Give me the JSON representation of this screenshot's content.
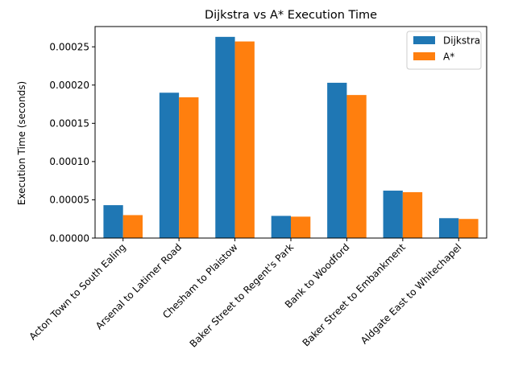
{
  "chart_data": {
    "type": "bar",
    "title": "Dijkstra vs A* Execution Time",
    "xlabel": "",
    "ylabel": "Execution Time (seconds)",
    "categories": [
      "Acton Town to South Ealing",
      "Arsenal to Latimer Road",
      "Chesham to Plaistow",
      "Baker Street to Regent's Park",
      "Bank to Woodford",
      "Baker Street to Embankment",
      "Aldgate East to Whitechapel"
    ],
    "series": [
      {
        "name": "Dijkstra",
        "color": "#1f77b4",
        "values": [
          4.3e-05,
          0.00019,
          0.000263,
          2.9e-05,
          0.000203,
          6.2e-05,
          2.6e-05
        ]
      },
      {
        "name": "A*",
        "color": "#ff7f0e",
        "values": [
          3e-05,
          0.000184,
          0.000257,
          2.8e-05,
          0.000187,
          6e-05,
          2.5e-05
        ]
      }
    ],
    "ylim": [
      0,
      0.0002765
    ],
    "yticks": [
      "0.00000",
      "0.00005",
      "0.00010",
      "0.00015",
      "0.00020",
      "0.00025"
    ],
    "grid": false,
    "legend": "top-right"
  }
}
